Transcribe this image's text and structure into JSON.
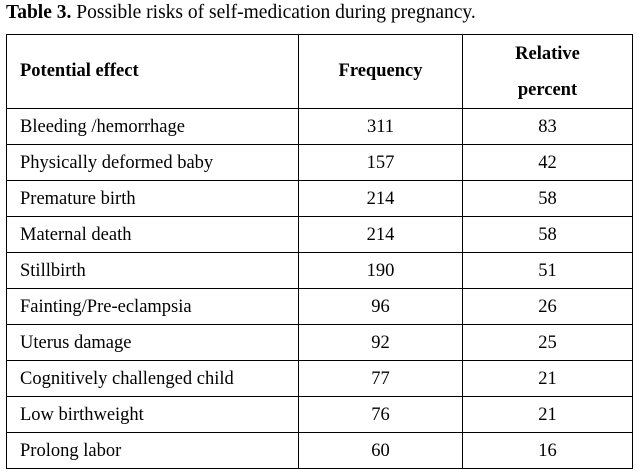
{
  "caption": {
    "label": "Table 3.",
    "text": " Possible risks of self-medication during pregnancy."
  },
  "table": {
    "headers": {
      "effect": "Potential effect",
      "frequency": "Frequency",
      "percent_line1": "Relative",
      "percent_line2": "percent"
    },
    "rows": [
      {
        "effect": "Bleeding /hemorrhage",
        "frequency": "311",
        "percent": "83"
      },
      {
        "effect": "Physically deformed baby",
        "frequency": "157",
        "percent": "42"
      },
      {
        "effect": "Premature birth",
        "frequency": "214",
        "percent": "58"
      },
      {
        "effect": "Maternal death",
        "frequency": "214",
        "percent": "58"
      },
      {
        "effect": "Stillbirth",
        "frequency": "190",
        "percent": "51"
      },
      {
        "effect": "Fainting/Pre-eclampsia",
        "frequency": "96",
        "percent": "26"
      },
      {
        "effect": "Uterus damage",
        "frequency": "92",
        "percent": "25"
      },
      {
        "effect": "Cognitively challenged child",
        "frequency": "77",
        "percent": "21"
      },
      {
        "effect": "Low birthweight",
        "frequency": "76",
        "percent": "21"
      },
      {
        "effect": "Prolong labor",
        "frequency": "60",
        "percent": "16"
      }
    ]
  }
}
